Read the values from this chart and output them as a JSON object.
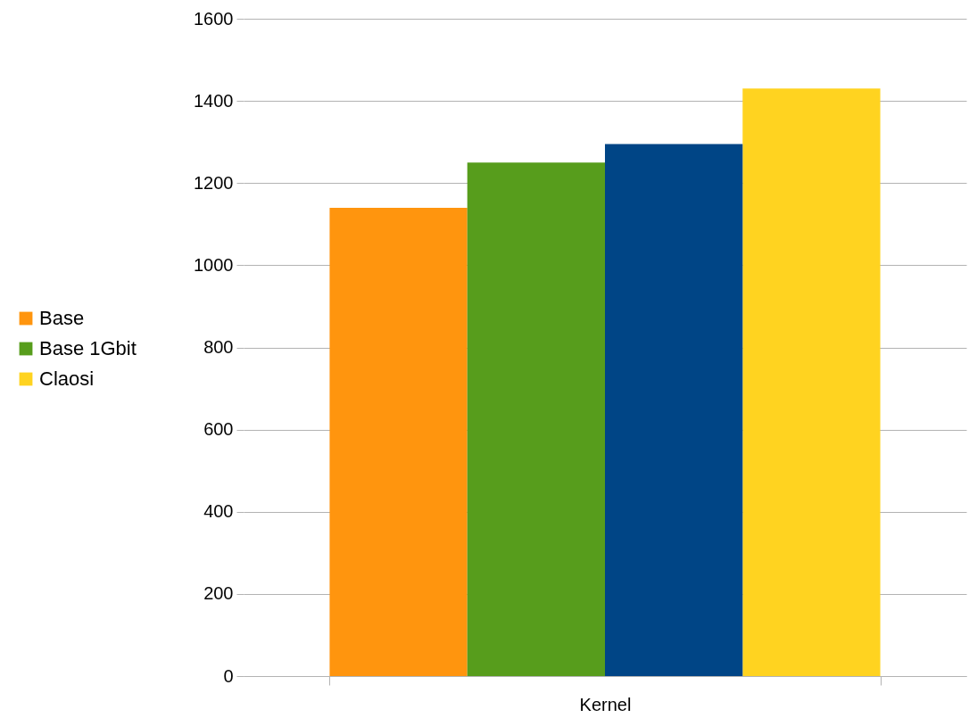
{
  "chart_data": {
    "type": "bar",
    "categories": [
      "Kernel"
    ],
    "series": [
      {
        "name": "Base",
        "color": "#ff950e",
        "values": [
          1140
        ]
      },
      {
        "name": "Base 1Gbit",
        "color": "#579d1c",
        "values": [
          1250
        ]
      },
      {
        "color": "#004586",
        "values": [
          1295
        ]
      },
      {
        "name": "Claosi",
        "color": "#ffd320",
        "values": [
          1430
        ]
      }
    ],
    "ylim": [
      0,
      1600
    ],
    "yticks": [
      0,
      200,
      400,
      600,
      800,
      1000,
      1200,
      1400,
      1600
    ],
    "grid": "y",
    "legend": "left"
  }
}
